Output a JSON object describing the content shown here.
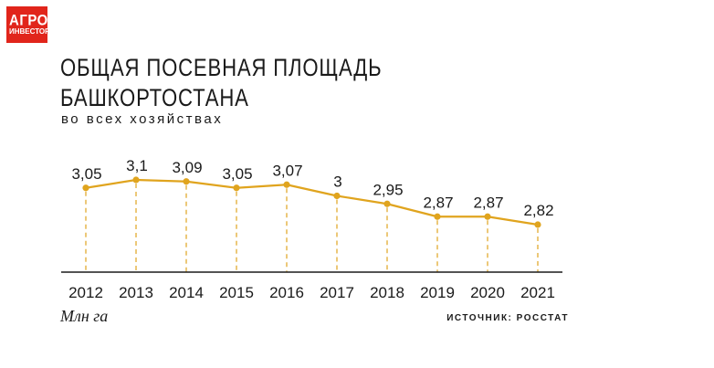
{
  "logo": {
    "line1": "АГРО",
    "line2": "ИНВЕСТОР"
  },
  "header": {
    "title_line1": "ОБЩАЯ ПОСЕВНАЯ ПЛОЩАДЬ",
    "title_line2": "БАШКОРТОСТАНА",
    "subtitle": "во всех хозяйствах"
  },
  "footer": {
    "unit": "Млн га",
    "source": "ИСТОЧНИК: РОССТАТ"
  },
  "colors": {
    "accent": "#e0a41e",
    "logo_bg": "#e1251b",
    "axis": "#1a1a1a",
    "text": "#1a1a1a"
  },
  "chart_data": {
    "type": "line",
    "categories": [
      "2012",
      "2013",
      "2014",
      "2015",
      "2016",
      "2017",
      "2018",
      "2019",
      "2020",
      "2021"
    ],
    "values": [
      3.05,
      3.1,
      3.09,
      3.05,
      3.07,
      3.0,
      2.95,
      2.87,
      2.87,
      2.82
    ],
    "labels": [
      "3,05",
      "3,1",
      "3,09",
      "3,05",
      "3,07",
      "3",
      "2,95",
      "2,87",
      "2,87",
      "2,82"
    ],
    "title": "ОБЩАЯ ПОСЕВНАЯ ПЛОЩАДЬ БАШКОРТОСТАНА",
    "subtitle": "во всех хозяйствах",
    "xlabel": "",
    "ylabel": "Млн га",
    "grid": false,
    "dashed_drop_lines": true
  }
}
